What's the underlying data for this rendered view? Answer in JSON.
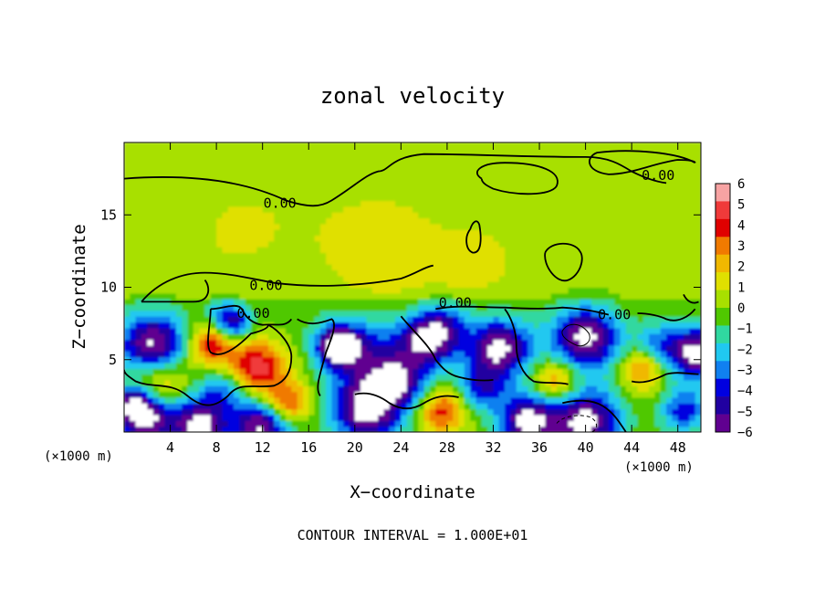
{
  "chart_data": {
    "type": "heatmap",
    "title": "zonal velocity",
    "xlabel": "X−coordinate",
    "ylabel": "Z−coordinate",
    "x_unit_left": "(×1000 m)",
    "x_unit_right": "(×1000 m)",
    "xlim": [
      0,
      50
    ],
    "ylim": [
      0,
      20
    ],
    "xticks": [
      4,
      8,
      12,
      16,
      20,
      24,
      28,
      32,
      36,
      40,
      44,
      48
    ],
    "yticks": [
      5,
      10,
      15
    ],
    "footer": "CONTOUR INTERVAL = 1.000E+01",
    "colorbar": {
      "ticks": [
        "6",
        "5",
        "4",
        "3",
        "2",
        "1",
        "0",
        "−1",
        "−2",
        "−3",
        "−4",
        "−5",
        "−6"
      ],
      "colors": [
        "#f7a3a3",
        "#f03a3a",
        "#e00000",
        "#f07a00",
        "#f0b800",
        "#e0e000",
        "#a8e000",
        "#50c800",
        "#30d8a0",
        "#20c8f0",
        "#1080f0",
        "#0000e0",
        "#2000a0",
        "#600090"
      ]
    },
    "contour_labels": [
      {
        "text": "0.00",
        "x": 13.5,
        "y": 15.5
      },
      {
        "text": "0.00",
        "x": 46.3,
        "y": 17.4
      },
      {
        "text": "0.00",
        "x": 12.3,
        "y": 9.8
      },
      {
        "text": "0.00",
        "x": 11.2,
        "y": 7.9
      },
      {
        "text": "0.00",
        "x": 28.7,
        "y": 8.6
      },
      {
        "text": "0.00",
        "x": 42.5,
        "y": 7.8
      }
    ],
    "blobs": [
      {
        "x": 2.5,
        "z": 6.0,
        "v": -6.5,
        "r": 3.0
      },
      {
        "x": 21.0,
        "z": 1.5,
        "v": -6.5,
        "r": 3.0
      },
      {
        "x": 1.8,
        "z": 1.0,
        "v": -6.5,
        "r": 2.5
      },
      {
        "x": 6.5,
        "z": 0.5,
        "v": -6.5,
        "r": 2.5
      },
      {
        "x": 12.0,
        "z": 0.5,
        "v": -6.5,
        "r": 2.5
      },
      {
        "x": 35.0,
        "z": 0.8,
        "v": -6.5,
        "r": 2.5
      },
      {
        "x": 18.5,
        "z": 6.0,
        "v": -6.5,
        "r": 1.8
      },
      {
        "x": 26.5,
        "z": 6.5,
        "v": -6.5,
        "r": 2.5
      },
      {
        "x": 32.5,
        "z": 5.8,
        "v": -6.5,
        "r": 2.8
      },
      {
        "x": 40.0,
        "z": 6.5,
        "v": -6.5,
        "r": 3.0
      },
      {
        "x": 40.0,
        "z": 0.8,
        "v": -6.5,
        "r": 3.0
      },
      {
        "x": 49.5,
        "z": 5.5,
        "v": -6.5,
        "r": 2.5
      },
      {
        "x": 11.5,
        "z": 4.5,
        "v": 4.8,
        "r": 2.5
      },
      {
        "x": 7.5,
        "z": 6.0,
        "v": 4.2,
        "r": 2.0
      },
      {
        "x": 3.0,
        "z": 3.5,
        "v": 3.5,
        "r": 2.5
      },
      {
        "x": 14.0,
        "z": 2.0,
        "v": 4.5,
        "r": 2.0
      },
      {
        "x": 27.5,
        "z": 1.5,
        "v": 4.0,
        "r": 2.0
      },
      {
        "x": 37.5,
        "z": 3.5,
        "v": 3.5,
        "r": 2.0
      },
      {
        "x": 45.0,
        "z": 4.5,
        "v": 3.5,
        "r": 2.0
      },
      {
        "x": 9.5,
        "z": 7.5,
        "v": -4.5,
        "r": 1.5
      },
      {
        "x": 21.0,
        "z": 5.5,
        "v": -4.0,
        "r": 3.5
      },
      {
        "x": 24.0,
        "z": 3.5,
        "v": -4.5,
        "r": 2.5
      },
      {
        "x": 8.5,
        "z": 3.0,
        "v": -3.0,
        "r": 2.0
      },
      {
        "x": 31.0,
        "z": 3.0,
        "v": -3.5,
        "r": 2.0
      },
      {
        "x": 46.0,
        "z": 6.0,
        "v": -3.0,
        "r": 2.0
      },
      {
        "x": 48.5,
        "z": 1.5,
        "v": -4.0,
        "r": 2.0
      },
      {
        "x": 0.8,
        "z": 2.0,
        "v": -4.0,
        "r": 1.5
      },
      {
        "x": 22.0,
        "z": 12.0,
        "v": 1.0,
        "r": 6.0
      },
      {
        "x": 10.0,
        "z": 14.0,
        "v": 0.6,
        "r": 5.0
      },
      {
        "x": 30.0,
        "z": 11.5,
        "v": 0.8,
        "r": 3.0
      },
      {
        "x": 38.0,
        "z": 14.0,
        "v": 0.4,
        "r": 6.0
      },
      {
        "x": 15.0,
        "z": 9.0,
        "v": -0.6,
        "r": 4.0
      },
      {
        "x": 4.0,
        "z": 18.5,
        "v": -0.3,
        "r": 5.0
      },
      {
        "x": 8.5,
        "z": 8.3,
        "v": -2.0,
        "r": 1.5
      },
      {
        "x": 28.0,
        "z": 7.8,
        "v": -1.8,
        "r": 2.0
      }
    ],
    "contours": [
      "M0,17.5 C5,17.8 10,17.5 14,16 C16,15.5 17,15.5 18,16 C20,17 21,17.8 22,18 C23,18 23,19 26,19.2 C30,19.2 35,19 40,19 C42,19 43,18.5 44,18 C45,17.6 46,17.3 47,17.2",
      "M49.5,18.6 C48,19.3 44,19.6 41,19.3 C40,19 40,18 42,17.8 C44,17.8 46,18.6 48,18.8 C49,18.8 49.5,18.7 49.5,18.6",
      "M31,17.5 C30,18 31,18.6 33,18.6 C36,18.6 38,18 37.5,17 C37,16.3 34,16.3 32,16.8 C31.5,17 31,17.2 31,17.5",
      "M30,14 C29.5,13.5 29.6,12.6 30.2,12.4 C31,12.3 31,13.4 30.8,14.3 C30.6,14.8 30.2,14.5 30,14",
      "M36.5,12.4 C36.3,11.5 37.5,10.2 38.5,10.5 C39.5,10.8 40,12 39.5,12.5 C39,13.2 37,13.2 36.5,12.4",
      "M1.5,9 C3,10.4 5,11 7,11 C9,11 11,10.6 13,10.3 C16,10 20,10 24,10.6 C25.5,11 26,11.4 26.8,11.5",
      "M1.5,9 C3,9 4.5,9 6,9 C7.5,9 7.5,10 7,10.5",
      "M7.5,8.5 C8.5,8.5 9.8,9 10.2,8.5 C10.5,8 11,7.5 12,7.4 C13,7.5 14,7.2 14.5,7.8",
      "M7.5,8.5 C7.5,7.5 7,6 7.5,5.5 C8.5,5 10,6 11,6.8 C12,7 12.5,7.2 12.5,7.4",
      "M12.5,7.4 C13.5,7 14.5,6 14.5,5.2 C14.5,4.2 14,3.5 13,3.2 C11,3 10,3.5 9,2.5 C8,1.8 7,1.5 5.5,2.5 C4,3.5 2.5,3 1,3.5 C0.5,3.8 0,4 0,4.3",
      "M15,7.8 C16,7.3 17,7.5 18,7.8 C18.5,7.5 18,6.5 17.5,5.5 C17,4 16.5,3 17,2.5",
      "M27,8.5 C29,8.8 31,8.6 33,8.6 C35,8.5 37,8.5 38,8.6 C40,8.5 41,8.3 42,8.1",
      "M44.5,8.2 C45.5,8.2 46.5,8 47,7.8 C48,7.5 49,8 49.5,8.5",
      "M24,8 C25,7 26.5,6 27,5 C27.5,4.5 28,4 29,3.8 C30,3.6 31,3.5 32,3.6",
      "M33,8.5 C33.5,8 34,7 34,6 C34,5 34.5,4 35.5,3.5 C36.5,3.3 37.5,3.5 38.5,3.3",
      "M20,2.6 C21,2.8 22,2.6 23,2 C24,1.5 25,1.5 26,2 C27,2.5 28,2.6 29,2.4",
      "M38,2 C39,2.2 40.5,2.3 41.5,1.8 C42.5,1.3 43,0.6 43.5,0",
      "M44,3.5 C45,3.3 46,3.6 47,4 C48,4.2 49,4 49.8,4",
      "M48.5,9.5 C48.8,9 49.3,8.8 49.8,9"
    ],
    "thin_contours": [
      "M38.0,7.0 C38.5,7.6 39.6,7.6 40.3,6.8 C40.6,6.2 39.8,5.8 39.2,6.0 C38.6,6.2 37.8,6.6 38.0,7.0"
    ],
    "dashed_contours": [
      "M37.5,0.6 C38,1.1 39.5,1.3 40.5,1.0 C41.2,0.6 41.0,0.1 40.5,0"
    ]
  }
}
